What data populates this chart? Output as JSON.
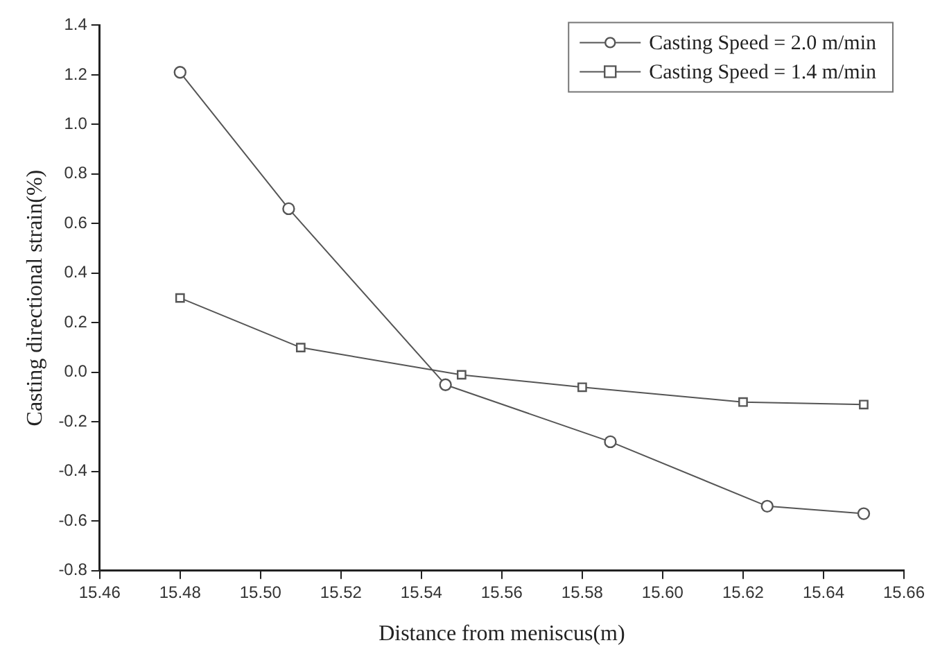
{
  "chart_data": {
    "type": "line",
    "xlabel": "Distance from meniscus(m)",
    "ylabel": "Casting directional strain(%)",
    "xlim": [
      15.46,
      15.66
    ],
    "xticks": [
      15.46,
      15.48,
      {
        "value": 15.5,
        "label": "15.50"
      },
      15.52,
      15.54,
      15.56,
      15.58,
      {
        "value": 15.6,
        "label": "15.60"
      },
      15.62,
      15.64,
      15.66
    ],
    "ylim": [
      -0.8,
      1.4
    ],
    "yticks": [
      -0.8,
      -0.6,
      -0.4,
      -0.2,
      {
        "value": 0,
        "label": "0.0"
      },
      0.2,
      0.4,
      0.6,
      0.8,
      {
        "value": 1,
        "label": "1.0"
      },
      1.2,
      1.4
    ],
    "grid": false,
    "legend": "top right",
    "line_style": "solid",
    "series": [
      {
        "name": "Casting Speed = 2.0 m/min",
        "color": "#555555",
        "marker": "circle",
        "x": [
          15.48,
          15.507,
          15.546,
          15.587,
          15.626,
          15.65
        ],
        "values": [
          1.21,
          0.66,
          -0.05,
          -0.28,
          -0.54,
          -0.57
        ]
      },
      {
        "name": "Casting Speed = 1.4 m/min",
        "color": "#555555",
        "marker": "square",
        "x": [
          15.48,
          15.51,
          15.55,
          15.58,
          15.62,
          15.65
        ],
        "values": [
          0.3,
          0.1,
          -0.01,
          -0.06,
          -0.12,
          -0.13
        ]
      }
    ]
  }
}
